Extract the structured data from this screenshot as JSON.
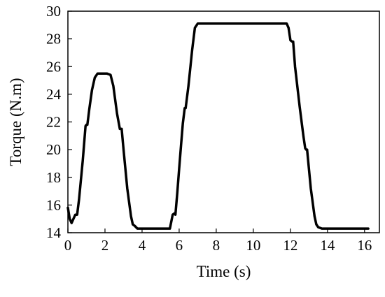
{
  "chart_data": {
    "type": "line",
    "title": "",
    "xlabel": "Time (s)",
    "ylabel": "Torque (N.m)",
    "xlim": [
      0,
      16.8
    ],
    "ylim": [
      14,
      30
    ],
    "x_ticks": [
      0,
      2,
      4,
      6,
      8,
      10,
      12,
      14,
      16
    ],
    "y_ticks": [
      14,
      16,
      18,
      20,
      22,
      24,
      26,
      28,
      30
    ],
    "grid": false,
    "legend": "none",
    "line_color": "#000000",
    "series": [
      {
        "x": [
          0,
          0.1,
          0.2,
          0.3,
          0.4,
          0.5,
          0.6,
          0.8,
          0.95,
          1.0,
          1.05,
          1.15,
          1.3,
          1.45,
          1.6,
          2.1,
          2.3,
          2.45,
          2.65,
          2.8,
          2.85,
          2.9,
          3.0,
          3.2,
          3.4,
          3.5,
          3.6,
          3.75,
          4.0,
          5.5,
          5.65,
          5.75,
          5.8,
          5.9,
          6.0,
          6.1,
          6.2,
          6.3,
          6.35,
          6.5,
          6.7,
          6.85,
          7.0,
          7.5,
          11.8,
          11.9,
          12.0,
          12.1,
          12.15,
          12.25,
          12.5,
          12.7,
          12.8,
          12.85,
          12.9,
          13.1,
          13.3,
          13.4,
          13.5,
          13.7,
          16.2
        ],
        "y": [
          15.8,
          15.0,
          14.7,
          15.0,
          15.3,
          15.3,
          16.4,
          19.2,
          21.7,
          21.8,
          21.8,
          22.9,
          24.3,
          25.2,
          25.5,
          25.5,
          25.4,
          24.6,
          22.6,
          21.5,
          21.5,
          21.5,
          20.0,
          17.2,
          15.2,
          14.6,
          14.5,
          14.3,
          14.3,
          14.3,
          15.3,
          15.4,
          15.3,
          16.9,
          18.6,
          20.3,
          21.9,
          23.0,
          23.0,
          24.6,
          27.2,
          28.8,
          29.1,
          29.1,
          29.1,
          28.8,
          27.9,
          27.8,
          27.8,
          26.0,
          23.1,
          21.0,
          20.1,
          20.0,
          20.0,
          17.2,
          15.2,
          14.6,
          14.4,
          14.3,
          14.3
        ]
      }
    ]
  }
}
